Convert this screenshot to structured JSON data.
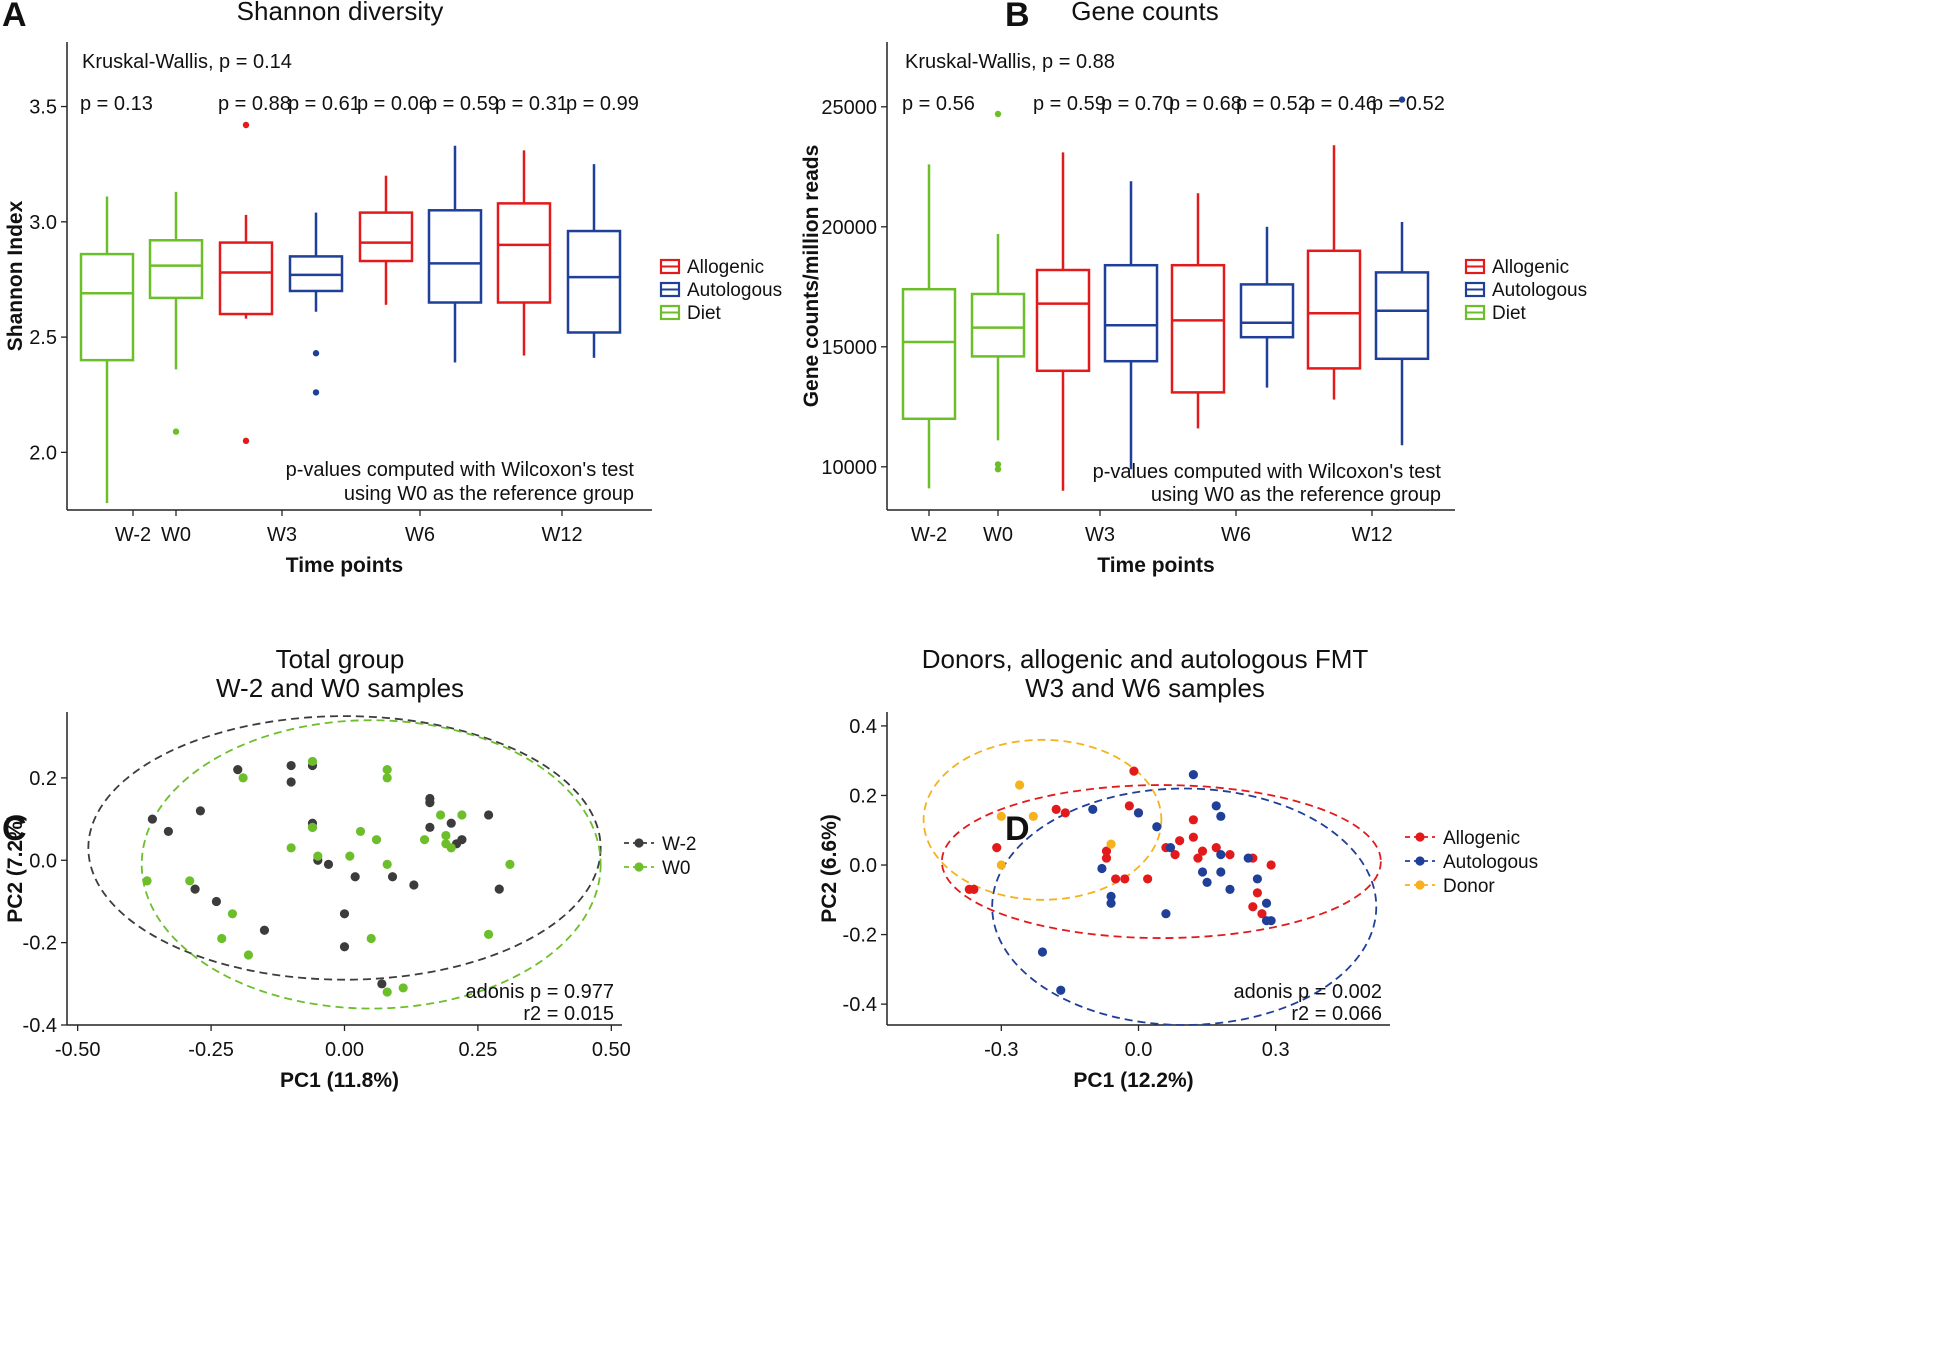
{
  "colors": {
    "allogenic": "#e31a1c",
    "autologous": "#1f3f99",
    "diet": "#6cbf2a",
    "donor": "#f5b21c",
    "w_minus2": "#3c3c3c",
    "w0": "#6cbf2a",
    "axis": "#222222"
  },
  "chart_data": [
    {
      "panel": "A",
      "type": "box",
      "title": "Shannon diversity",
      "xlabel": "Time points",
      "ylabel": "Shannon Index",
      "ylim": [
        1.75,
        3.78
      ],
      "yticks": [
        2.0,
        2.5,
        3.0,
        3.5
      ],
      "ytick_labels": [
        "2.0",
        "2.5",
        "3.0",
        "3.5"
      ],
      "categories": [
        "W-2",
        "W0",
        "W3",
        "W6",
        "W12"
      ],
      "legend": [
        "Allogenic",
        "Autologous",
        "Diet"
      ],
      "annotation_top": "Kruskal-Wallis, p = 0.14",
      "annotation_bottom": [
        "p-values computed with Wilcoxon's test",
        "using W0 as the reference group"
      ],
      "pvalues": [
        "p = 0.13",
        "p = 0.88",
        "p = 0.61",
        "p = 0.06",
        "p = 0.59",
        "p = 0.31",
        "p = 0.99"
      ],
      "boxes": [
        {
          "group": "W-2",
          "series": "Diet",
          "min": 1.78,
          "q1": 2.4,
          "median": 2.69,
          "q3": 2.86,
          "max": 3.11,
          "outliers": []
        },
        {
          "group": "W0",
          "series": "Diet",
          "min": 2.36,
          "q1": 2.67,
          "median": 2.81,
          "q3": 2.92,
          "max": 3.13,
          "outliers": [
            2.09
          ]
        },
        {
          "group": "W3",
          "series": "Allogenic",
          "min": 2.58,
          "q1": 2.6,
          "median": 2.78,
          "q3": 2.91,
          "max": 3.03,
          "outliers": [
            3.42,
            2.05
          ]
        },
        {
          "group": "W3",
          "series": "Autologous",
          "min": 2.61,
          "q1": 2.7,
          "median": 2.77,
          "q3": 2.85,
          "max": 3.04,
          "outliers": [
            2.43,
            2.26
          ]
        },
        {
          "group": "W6",
          "series": "Allogenic",
          "min": 2.64,
          "q1": 2.83,
          "median": 2.91,
          "q3": 3.04,
          "max": 3.2,
          "outliers": []
        },
        {
          "group": "W6",
          "series": "Autologous",
          "min": 2.39,
          "q1": 2.65,
          "median": 2.82,
          "q3": 3.05,
          "max": 3.33,
          "outliers": []
        },
        {
          "group": "W12",
          "series": "Allogenic",
          "min": 2.42,
          "q1": 2.65,
          "median": 2.9,
          "q3": 3.08,
          "max": 3.31,
          "outliers": []
        },
        {
          "group": "W12",
          "series": "Autologous",
          "min": 2.41,
          "q1": 2.52,
          "median": 2.76,
          "q3": 2.96,
          "max": 3.25,
          "outliers": []
        }
      ]
    },
    {
      "panel": "B",
      "type": "box",
      "title": "Gene counts",
      "xlabel": "Time points",
      "ylabel": "Gene counts/million reads",
      "ylim": [
        8200,
        27700
      ],
      "yticks": [
        10000,
        15000,
        20000,
        25000
      ],
      "ytick_labels": [
        "10000",
        "15000",
        "20000",
        "25000"
      ],
      "categories": [
        "W-2",
        "W0",
        "W3",
        "W6",
        "W12"
      ],
      "legend": [
        "Allogenic",
        "Autologous",
        "Diet"
      ],
      "annotation_top": "Kruskal-Wallis, p = 0.88",
      "annotation_bottom": [
        "p-values computed with Wilcoxon's test",
        "using W0 as the reference group"
      ],
      "pvalues": [
        "p = 0.56",
        "p = 0.59",
        "p = 0.70",
        "p = 0.68",
        "p = 0.52",
        "p = 0.46",
        "p = 0.52"
      ],
      "boxes": [
        {
          "group": "W-2",
          "series": "Diet",
          "min": 9100,
          "q1": 12000,
          "median": 15200,
          "q3": 17400,
          "max": 22600,
          "outliers": []
        },
        {
          "group": "W0",
          "series": "Diet",
          "min": 11100,
          "q1": 14600,
          "median": 15800,
          "q3": 17200,
          "max": 19700,
          "outliers": [
            24700,
            10100,
            9900
          ]
        },
        {
          "group": "W3",
          "series": "Allogenic",
          "min": 9000,
          "q1": 14000,
          "median": 16800,
          "q3": 18200,
          "max": 23100,
          "outliers": []
        },
        {
          "group": "W3",
          "series": "Autologous",
          "min": 9900,
          "q1": 14400,
          "median": 15900,
          "q3": 18400,
          "max": 21900,
          "outliers": []
        },
        {
          "group": "W6",
          "series": "Allogenic",
          "min": 11600,
          "q1": 13100,
          "median": 16100,
          "q3": 18400,
          "max": 21400,
          "outliers": []
        },
        {
          "group": "W6",
          "series": "Autologous",
          "min": 13300,
          "q1": 15400,
          "median": 16000,
          "q3": 17600,
          "max": 20000,
          "outliers": []
        },
        {
          "group": "W12",
          "series": "Allogenic",
          "min": 12800,
          "q1": 14100,
          "median": 16400,
          "q3": 19000,
          "max": 23400,
          "outliers": []
        },
        {
          "group": "W12",
          "series": "Autologous",
          "min": 10900,
          "q1": 14500,
          "median": 16500,
          "q3": 18100,
          "max": 20200,
          "outliers": [
            25300
          ]
        }
      ]
    },
    {
      "panel": "C",
      "type": "scatter",
      "title": [
        "Total group",
        "W-2 and W0 samples"
      ],
      "xlabel": "PC1 (11.8%)",
      "ylabel": "PC2 (7.2%)",
      "xlim": [
        -0.52,
        0.52
      ],
      "ylim": [
        -0.4,
        0.36
      ],
      "xticks": [
        -0.5,
        -0.25,
        0.0,
        0.25,
        0.5
      ],
      "xtick_labels": [
        "-0.50",
        "-0.25",
        "0.00",
        "0.25",
        "0.50"
      ],
      "yticks": [
        -0.4,
        -0.2,
        0.0,
        0.2
      ],
      "ytick_labels": [
        "-0.4",
        "-0.2",
        "0.0",
        "0.2"
      ],
      "legend": [
        "W-2",
        "W0"
      ],
      "annotation": [
        "adonis p = 0.977",
        "r2 = 0.015"
      ],
      "ellipses": [
        {
          "series": "W-2",
          "cx": 0.0,
          "cy": 0.03,
          "rx": 0.48,
          "ry": 0.32
        },
        {
          "series": "W0",
          "cx": 0.05,
          "cy": -0.01,
          "rx": 0.43,
          "ry": 0.35
        }
      ],
      "series": [
        {
          "name": "W-2",
          "points": [
            [
              -0.36,
              0.1
            ],
            [
              -0.33,
              0.07
            ],
            [
              -0.27,
              0.12
            ],
            [
              -0.28,
              -0.07
            ],
            [
              -0.24,
              -0.1
            ],
            [
              -0.2,
              0.22
            ],
            [
              -0.15,
              -0.17
            ],
            [
              -0.1,
              0.23
            ],
            [
              -0.1,
              0.19
            ],
            [
              -0.06,
              0.23
            ],
            [
              -0.06,
              0.09
            ],
            [
              -0.06,
              0.08
            ],
            [
              -0.05,
              0.0
            ],
            [
              -0.03,
              -0.01
            ],
            [
              0.0,
              -0.13
            ],
            [
              0.0,
              -0.21
            ],
            [
              0.02,
              -0.04
            ],
            [
              0.07,
              -0.3
            ],
            [
              0.09,
              -0.04
            ],
            [
              0.13,
              -0.06
            ],
            [
              0.16,
              0.15
            ],
            [
              0.16,
              0.14
            ],
            [
              0.16,
              0.08
            ],
            [
              0.2,
              0.09
            ],
            [
              0.21,
              0.04
            ],
            [
              0.22,
              0.05
            ],
            [
              0.27,
              0.11
            ],
            [
              0.29,
              -0.07
            ]
          ]
        },
        {
          "name": "W0",
          "points": [
            [
              -0.37,
              -0.05
            ],
            [
              -0.29,
              -0.05
            ],
            [
              -0.23,
              -0.19
            ],
            [
              -0.21,
              -0.13
            ],
            [
              -0.19,
              0.2
            ],
            [
              -0.18,
              -0.23
            ],
            [
              -0.1,
              0.03
            ],
            [
              -0.06,
              0.24
            ],
            [
              -0.06,
              0.08
            ],
            [
              -0.05,
              0.01
            ],
            [
              0.01,
              0.01
            ],
            [
              0.03,
              0.07
            ],
            [
              0.05,
              -0.19
            ],
            [
              0.06,
              0.05
            ],
            [
              0.08,
              0.22
            ],
            [
              0.08,
              0.2
            ],
            [
              0.08,
              -0.01
            ],
            [
              0.08,
              -0.32
            ],
            [
              0.11,
              -0.31
            ],
            [
              0.15,
              0.05
            ],
            [
              0.18,
              0.11
            ],
            [
              0.19,
              0.04
            ],
            [
              0.19,
              0.06
            ],
            [
              0.2,
              0.03
            ],
            [
              0.22,
              0.11
            ],
            [
              0.27,
              -0.18
            ],
            [
              0.31,
              -0.01
            ]
          ]
        }
      ]
    },
    {
      "panel": "D",
      "type": "scatter",
      "title": [
        "Donors, allogenic and autologous FMT",
        "W3 and W6 samples"
      ],
      "xlabel": "PC1 (12.2%)",
      "ylabel": "PC2 (6.6%)",
      "xlim": [
        -0.55,
        0.55
      ],
      "ylim": [
        -0.46,
        0.44
      ],
      "xticks": [
        -0.3,
        0.0,
        0.3
      ],
      "xtick_labels": [
        "-0.3",
        "0.0",
        "0.3"
      ],
      "yticks": [
        -0.4,
        -0.2,
        0.0,
        0.2,
        0.4
      ],
      "ytick_labels": [
        "-0.4",
        "-0.2",
        "0.0",
        "0.2",
        "0.4"
      ],
      "legend": [
        "Allogenic",
        "Autologous",
        "Donor"
      ],
      "annotation": [
        "adonis p = 0.002",
        "r2 = 0.066"
      ],
      "ellipses": [
        {
          "series": "Allogenic",
          "cx": 0.05,
          "cy": 0.01,
          "rx": 0.48,
          "ry": 0.22
        },
        {
          "series": "Autologous",
          "cx": 0.1,
          "cy": -0.12,
          "rx": 0.42,
          "ry": 0.34
        },
        {
          "series": "Donor",
          "cx": -0.21,
          "cy": 0.13,
          "rx": 0.26,
          "ry": 0.23
        }
      ],
      "series": [
        {
          "name": "Allogenic",
          "points": [
            [
              -0.37,
              -0.07
            ],
            [
              -0.36,
              -0.07
            ],
            [
              -0.31,
              0.05
            ],
            [
              -0.18,
              0.16
            ],
            [
              -0.16,
              0.15
            ],
            [
              -0.07,
              0.04
            ],
            [
              -0.07,
              0.02
            ],
            [
              -0.05,
              -0.04
            ],
            [
              -0.03,
              -0.04
            ],
            [
              -0.02,
              0.17
            ],
            [
              -0.01,
              0.27
            ],
            [
              0.0,
              0.15
            ],
            [
              0.02,
              -0.04
            ],
            [
              0.06,
              0.05
            ],
            [
              0.08,
              0.03
            ],
            [
              0.09,
              0.07
            ],
            [
              0.12,
              0.13
            ],
            [
              0.12,
              0.08
            ],
            [
              0.13,
              0.02
            ],
            [
              0.14,
              0.04
            ],
            [
              0.17,
              0.05
            ],
            [
              0.2,
              0.03
            ],
            [
              0.25,
              0.02
            ],
            [
              0.26,
              -0.08
            ],
            [
              0.25,
              -0.12
            ],
            [
              0.29,
              0.0
            ],
            [
              0.27,
              -0.14
            ]
          ]
        },
        {
          "name": "Autologous",
          "points": [
            [
              -0.21,
              -0.25
            ],
            [
              -0.17,
              -0.36
            ],
            [
              -0.1,
              0.16
            ],
            [
              -0.08,
              -0.01
            ],
            [
              -0.06,
              -0.09
            ],
            [
              -0.06,
              -0.11
            ],
            [
              0.0,
              0.15
            ],
            [
              0.04,
              0.11
            ],
            [
              0.06,
              -0.14
            ],
            [
              0.07,
              0.05
            ],
            [
              0.12,
              0.26
            ],
            [
              0.14,
              -0.02
            ],
            [
              0.15,
              -0.05
            ],
            [
              0.17,
              0.17
            ],
            [
              0.18,
              0.14
            ],
            [
              0.18,
              0.03
            ],
            [
              0.18,
              -0.02
            ],
            [
              0.2,
              -0.07
            ],
            [
              0.24,
              0.02
            ],
            [
              0.26,
              -0.04
            ],
            [
              0.28,
              -0.11
            ],
            [
              0.29,
              -0.16
            ],
            [
              0.28,
              -0.16
            ]
          ]
        },
        {
          "name": "Donor",
          "points": [
            [
              -0.26,
              0.23
            ],
            [
              -0.3,
              0.14
            ],
            [
              -0.23,
              0.14
            ],
            [
              -0.3,
              0.0
            ],
            [
              -0.06,
              0.06
            ]
          ]
        }
      ]
    }
  ]
}
